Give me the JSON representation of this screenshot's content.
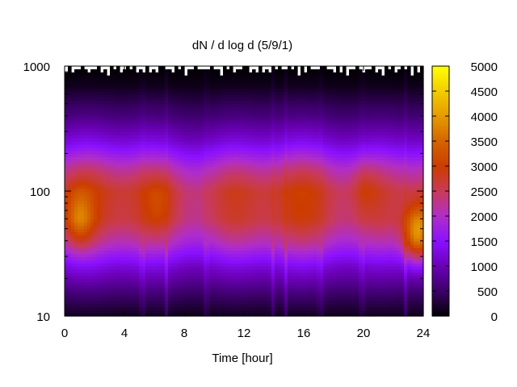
{
  "chart_data": {
    "type": "heatmap",
    "title": "dN / d log d (5/9/1)",
    "xlabel": "Time [hour]",
    "ylabel": "",
    "xlim": [
      0,
      24
    ],
    "ylim": [
      10,
      1000
    ],
    "yscale": "log",
    "x_ticks": [
      "0",
      "4",
      "8",
      "12",
      "16",
      "20",
      "24"
    ],
    "y_ticks": [
      "10",
      "100",
      "1000"
    ],
    "colorbar": {
      "range": [
        0,
        5000
      ],
      "ticks": [
        "0",
        "500",
        "1000",
        "1500",
        "2000",
        "2500",
        "3000",
        "3500",
        "4000",
        "4500",
        "5000"
      ],
      "colormap": [
        "#000000",
        "#3b0068",
        "#6a00b5",
        "#8a10ff",
        "#b02ec8",
        "#c83a5a",
        "#cc3c00",
        "#d46400",
        "#e59a00",
        "#f2cc00",
        "#ffff00"
      ]
    },
    "diameter_profile": [
      {
        "d": 10,
        "value": 150
      },
      {
        "d": 15,
        "value": 600
      },
      {
        "d": 25,
        "value": 1400
      },
      {
        "d": 40,
        "value": 2400
      },
      {
        "d": 60,
        "value": 3000
      },
      {
        "d": 100,
        "value": 3100
      },
      {
        "d": 150,
        "value": 2500
      },
      {
        "d": 250,
        "value": 1400
      },
      {
        "d": 400,
        "value": 700
      },
      {
        "d": 700,
        "value": 150
      },
      {
        "d": 1000,
        "value": 0
      }
    ],
    "hotspots": [
      {
        "time": 1,
        "d": 60,
        "value": 3900
      },
      {
        "time": 6.3,
        "d": 80,
        "value": 3400
      },
      {
        "time": 20.1,
        "d": 110,
        "value": 3300
      },
      {
        "time": 23.6,
        "d": 45,
        "value": 4400
      }
    ],
    "grid": false,
    "legend": "colorbar-right"
  }
}
